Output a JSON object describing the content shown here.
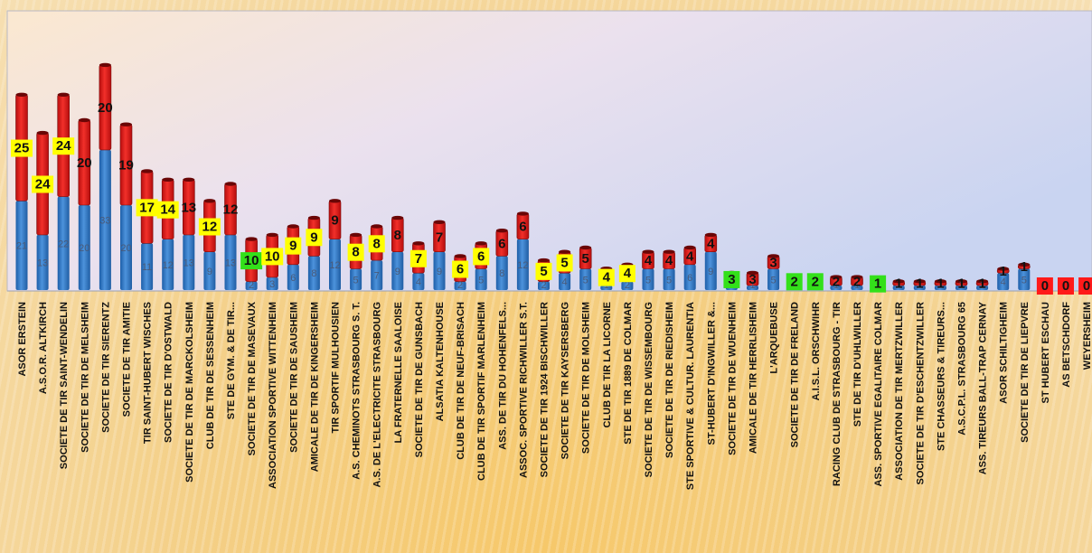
{
  "chart_data": {
    "type": "bar",
    "stacked": true,
    "ylim": [
      0,
      58
    ],
    "grid": false,
    "legend": "none",
    "colors": {
      "bottom_series": "#2f78c4",
      "top_series": "#e01a1a",
      "label_yellow": "#ffff00",
      "label_green": "#33e01a",
      "label_red": "#ff1a1a"
    },
    "categories": [
      "ASOR ERSTEIN",
      "A.S.O.R. ALTKIRCH",
      "SOCIETE DE TIR SAINT-WENDELIN",
      "SOCIETE DE TIR DE MELSHEIM",
      "SOCIETE DE TIR SIERENTZ",
      "SOCIETE DE TIR AMITIE",
      "TIR SAINT-HUBERT WISCHES",
      "SOCIETE DE TIR D'OSTWALD",
      "SOCIETE DE TIR DE MARCKOLSHEIM",
      "CLUB DE TIR DE SESSENHEIM",
      "STE DE GYM. & DE TIR...",
      "SOCIETE DE TIR DE MASEVAUX",
      "ASSOCIATION SPORTIVE WITTENHEIM",
      "SOCIETE DE TIR DE SAUSHEIM",
      "AMICALE DE TIR DE KINGERSHEIM",
      "TIR SPORTIF MULHOUSIEN",
      "A.S. CHEMINOTS STRASBOURG S. T.",
      "A.S. DE L'ELECTRICITE STRASBOURG",
      "LA FRATERNELLE SAALOISE",
      "SOCIETE DE TIR DE GUNSBACH",
      "ALSATIA KALTENHOUSE",
      "CLUB DE TIR DE NEUF-BRISACH",
      "CLUB DE TIR SPORTIF MARLENHEIM",
      "ASS. DE TIR DU HOHENFELS...",
      "ASSOC. SPORTIVE RICHWILLER S.T.",
      "SOCIETE DE TIR 1924 BISCHWILLER",
      "SOCIETE DE TIR KAYSERSBERG",
      "SOCIETE DE TIR DE MOLSHEIM",
      "CLUB DE TIR LA LICORNE",
      "STE DE TIR 1889 DE COLMAR",
      "SOCIETE DE TIR DE WISSEMBOURG",
      "SOCIETE DE TIR DE RIEDISHEIM",
      "STE SPORTIVE & CULTUR. LAURENTIA",
      "ST-HUBERT D'INGWILLER &...",
      "SOCIETE DE TIR DE WUENHEIM",
      "AMICALE DE TIR HERRLISHEIM",
      "L'ARQUEBUSE",
      "SOCIETE DE TIR DE FRELAND",
      "A.I.S.L. ORSCHWIHR",
      "RACING CLUB DE STRASBOURG - TIR",
      "STE DE TIR D'UHLWILLER",
      "ASS. SPORTIVE EGALITAIRE COLMAR",
      "ASSOCIATION DE TIR MERTZWILLER",
      "SOCIETE DE TIR D'ESCHENTZWILLER",
      "STE CHASSEURS & TIREURS...",
      "A.S.C.P.L. STRASBOURG 65",
      "ASS. TIREURS BALL-TRAP CERNAY",
      "ASOR SCHILTIGHEIM",
      "SOCIETE DE TIR DE LIEPVRE",
      "ST HUBERT ESCHAU",
      "AS BETSCHDORF",
      "WEYERSHEIM"
    ],
    "series": [
      {
        "values": [
          21,
          13,
          22,
          20,
          33,
          20,
          11,
          12,
          13,
          9,
          13,
          2,
          3,
          6,
          8,
          12,
          5,
          7,
          9,
          4,
          9,
          2,
          5,
          8,
          12,
          2,
          4,
          5,
          1,
          2,
          5,
          5,
          6,
          9,
          1,
          1,
          5,
          0,
          0,
          1,
          1,
          0,
          0,
          0,
          0,
          1,
          1,
          4,
          5,
          0,
          0,
          0
        ]
      },
      {
        "values": [
          25,
          24,
          24,
          20,
          20,
          19,
          17,
          14,
          13,
          12,
          12,
          10,
          10,
          9,
          9,
          9,
          8,
          8,
          8,
          7,
          7,
          6,
          6,
          6,
          6,
          5,
          5,
          5,
          4,
          4,
          4,
          4,
          4,
          4,
          3,
          3,
          3,
          2,
          2,
          2,
          2,
          1,
          1,
          1,
          1,
          1,
          1,
          1,
          1,
          0,
          0,
          0
        ]
      }
    ],
    "data_labels": {
      "inner": [
        "21",
        "13",
        "22",
        "20",
        "33",
        "20",
        "11",
        "12",
        "13",
        "9",
        "13",
        "2",
        "3",
        "6",
        "8",
        "12",
        "5",
        "7",
        "9",
        "4",
        "9",
        "2",
        "5",
        "8",
        "12",
        "2",
        "4",
        "5",
        "1",
        "2",
        "5",
        "5",
        "6",
        "9",
        "1",
        "1",
        "5",
        "",
        "",
        "1",
        "1",
        "",
        "",
        "",
        "",
        "1",
        "1",
        "4",
        "5",
        "",
        "",
        ""
      ],
      "totals": [
        "25",
        "24",
        "24",
        "20",
        "20",
        "19",
        "17",
        "14",
        "13",
        "12",
        "12",
        "10",
        "10",
        "9",
        "9",
        "9",
        "8",
        "8",
        "8",
        "7",
        "7",
        "6",
        "6",
        "6",
        "6",
        "5",
        "5",
        "5",
        "4",
        "4",
        "4",
        "4",
        "4",
        "4",
        "3",
        "3",
        "3",
        "2",
        "2",
        "2",
        "2",
        "1",
        "1",
        "1",
        "1",
        "1",
        "1",
        "1",
        "1",
        "0",
        "0",
        "0"
      ],
      "highlight": [
        "yellow",
        "yellow",
        "yellow",
        "none",
        "none",
        "none",
        "yellow",
        "yellow",
        "none",
        "yellow",
        "none",
        "green",
        "yellow",
        "yellow",
        "yellow",
        "none",
        "yellow",
        "yellow",
        "none",
        "yellow",
        "none",
        "yellow",
        "yellow",
        "none",
        "none",
        "yellow",
        "yellow",
        "none",
        "yellow",
        "yellow",
        "none",
        "none",
        "none",
        "none",
        "green",
        "none",
        "none",
        "green",
        "green",
        "none",
        "none",
        "green",
        "none",
        "none",
        "none",
        "none",
        "none",
        "none",
        "none",
        "red",
        "red",
        "red"
      ]
    }
  }
}
